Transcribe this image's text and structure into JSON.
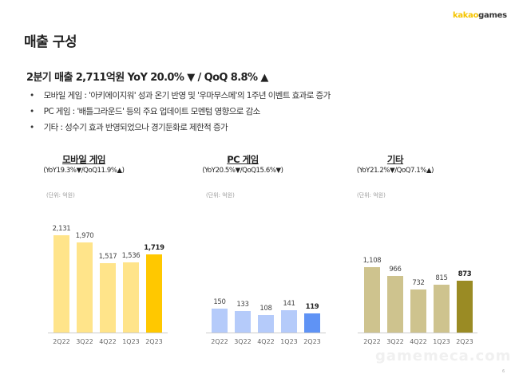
{
  "logo": {
    "part1": "kakao",
    "part2": "games"
  },
  "title": "매출 구성",
  "headline": "2분기 매출 2,711억원 YoY 20.0% ▼ / QoQ 8.8% ▲",
  "bullets": [
    "모바일 게임 : '아키에이지워' 성과 온기 반영 및 '우마무스메'의 1주년 이벤트 효과로 증가",
    "PC 게임 : '배틀그라운드' 등의 주요 업데이트 모멘텀 영향으로 감소",
    "기타 : 성수기 효과 반영되었으나 경기둔화로 제한적 증가"
  ],
  "chart_data": [
    {
      "type": "bar",
      "title": "모바일 게임",
      "subtitle": "(YoY19.3%▼/QoQ11.9%▲)",
      "unit": "(단위: 억원)",
      "categories": [
        "2Q22",
        "3Q22",
        "4Q22",
        "1Q23",
        "2Q23"
      ],
      "values": [
        2131,
        1970,
        1517,
        1536,
        1719
      ],
      "labels": [
        "2,131",
        "1,970",
        "1,517",
        "1,536",
        "1,719"
      ],
      "colors": {
        "base": "#FFE48A",
        "highlight": "#FFC800"
      },
      "highlight_index": 4
    },
    {
      "type": "bar",
      "title": "PC 게임",
      "subtitle": "(YoY20.5%▼/QoQ15.6%▼)",
      "unit": "(단위: 억원)",
      "categories": [
        "2Q22",
        "3Q22",
        "4Q22",
        "1Q23",
        "2Q23"
      ],
      "values": [
        150,
        133,
        108,
        141,
        119
      ],
      "labels": [
        "150",
        "133",
        "108",
        "141",
        "119"
      ],
      "colors": {
        "base": "#B5CBFA",
        "highlight": "#5F93F5"
      },
      "highlight_index": 4
    },
    {
      "type": "bar",
      "title": "기타",
      "subtitle": "(YoY21.2%▼/QoQ7.1%▲)",
      "unit": "(단위: 억원)",
      "categories": [
        "2Q22",
        "3Q22",
        "4Q22",
        "1Q23",
        "2Q23"
      ],
      "values": [
        1108,
        966,
        732,
        815,
        873
      ],
      "labels": [
        "1,108",
        "966",
        "732",
        "815",
        "873"
      ],
      "colors": {
        "base": "#CEC38E",
        "highlight": "#9A8B24"
      },
      "highlight_index": 4
    }
  ],
  "watermark": "gamemeca.com",
  "page_number": "6"
}
